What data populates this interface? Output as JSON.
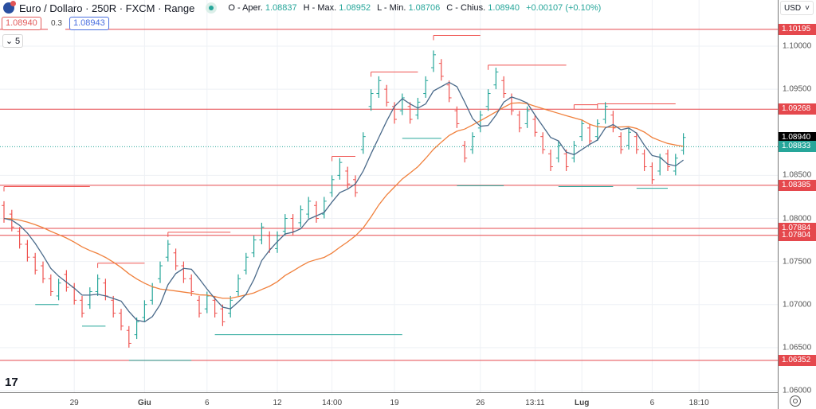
{
  "header": {
    "title": "Euro / Dollaro · 250R · FXCM · Range",
    "ohlc": {
      "o_label": "O - Aper.",
      "o": "1.08837",
      "h_label": "H - Max.",
      "h": "1.08952",
      "l_label": "L - Min.",
      "l": "1.08706",
      "c_label": "C - Chius.",
      "c": "1.08940",
      "change": "+0.00107 (+0.10%)"
    },
    "sell_price": "1.08940",
    "spread": "0.3",
    "buy_price": "1.08943",
    "indicators_count": "5",
    "collapse_icon": "chevron-down-icon"
  },
  "axis": {
    "currency": "USD",
    "ticks": [
      "1.10000",
      "1.09500",
      "1.08500",
      "1.08000",
      "1.07500",
      "1.07000",
      "1.06500",
      "1.06000"
    ],
    "tick_values": [
      1.1,
      1.095,
      1.085,
      1.08,
      1.075,
      1.07,
      1.065,
      1.06
    ]
  },
  "time_labels": [
    {
      "label": "29",
      "bold": false
    },
    {
      "label": "Giu",
      "bold": true
    },
    {
      "label": "6",
      "bold": false
    },
    {
      "label": "12",
      "bold": false
    },
    {
      "label": "14:00",
      "bold": false
    },
    {
      "label": "19",
      "bold": false
    },
    {
      "label": "26",
      "bold": false
    },
    {
      "label": "13:11",
      "bold": false
    },
    {
      "label": "Lug",
      "bold": true
    },
    {
      "label": "6",
      "bold": false
    },
    {
      "label": "18:10",
      "bold": false
    }
  ],
  "time_label_bar_index": [
    9,
    18,
    26,
    35,
    42,
    50,
    61,
    68,
    74,
    83,
    89
  ],
  "levels": [
    {
      "price": "1.10195",
      "value": 1.10195,
      "color": "#e5484d"
    },
    {
      "price": "1.09268",
      "value": 1.09268,
      "color": "#e5484d"
    },
    {
      "price": "1.08385",
      "value": 1.08385,
      "color": "#e5484d"
    },
    {
      "price": "1.07884",
      "value": 1.07884,
      "color": "#e5484d"
    },
    {
      "price": "1.07804",
      "value": 1.07804,
      "color": "#e5484d"
    },
    {
      "price": "1.06352",
      "value": 1.06352,
      "color": "#e5484d"
    }
  ],
  "last_price": {
    "price": "1.08940",
    "value": 1.0894,
    "color": "#000000"
  },
  "ma_price": {
    "price": "1.08833",
    "value": 1.08833,
    "color": "#26a69a"
  },
  "colors": {
    "up": "#26a69a",
    "down": "#ef5350",
    "fast_ma": "#4a6a8a",
    "slow_ma": "#f0803c",
    "grid": "#eef1f5"
  },
  "chart_data": {
    "type": "ohlc-range",
    "brick_size": 0.0025,
    "closes": [
      1.08,
      1.079,
      1.077,
      1.0755,
      1.074,
      1.073,
      1.0715,
      1.0725,
      1.072,
      1.0705,
      1.069,
      1.0715,
      1.073,
      1.071,
      1.069,
      1.0675,
      1.0655,
      1.068,
      1.07,
      1.072,
      1.0745,
      1.077,
      1.0745,
      1.073,
      1.0715,
      1.069,
      1.071,
      1.069,
      1.068,
      1.0705,
      1.073,
      1.0755,
      1.0775,
      1.079,
      1.0765,
      1.078,
      1.08,
      1.0785,
      1.081,
      1.082,
      1.08,
      1.082,
      1.0845,
      1.0865,
      1.084,
      1.083,
      1.0895,
      1.0945,
      1.096,
      1.0935,
      1.0915,
      1.094,
      1.0915,
      1.0935,
      1.096,
      1.099,
      1.0965,
      1.094,
      1.091,
      1.087,
      1.0895,
      1.092,
      1.0945,
      1.097,
      1.0945,
      1.0925,
      1.0905,
      1.0925,
      1.09,
      1.088,
      1.086,
      1.0885,
      1.086,
      1.0885,
      1.091,
      1.089,
      1.091,
      1.093,
      1.0905,
      1.088,
      1.09,
      1.088,
      1.086,
      1.0845,
      1.087,
      1.086,
      1.087,
      1.0894
    ],
    "fast_ma_period": 5,
    "slow_ma_period": 20,
    "resistance_segments": [
      [
        0,
        11,
        1.0837
      ],
      [
        12,
        18,
        1.0748
      ],
      [
        21,
        29,
        1.0784
      ],
      [
        42,
        45,
        1.0872
      ],
      [
        47,
        53,
        1.097
      ],
      [
        55,
        61,
        1.10125
      ],
      [
        62,
        72,
        1.0978
      ],
      [
        73,
        76,
        1.0932
      ],
      [
        76,
        86,
        1.0933
      ]
    ],
    "support_segments": [
      [
        4,
        7,
        1.07
      ],
      [
        10,
        13,
        1.0675
      ],
      [
        16,
        24,
        1.06352
      ],
      [
        27,
        51,
        1.0665
      ],
      [
        51,
        56,
        1.0893
      ],
      [
        58,
        64,
        1.0838
      ],
      [
        71,
        78,
        1.0837
      ],
      [
        81,
        85,
        1.0835
      ]
    ]
  }
}
